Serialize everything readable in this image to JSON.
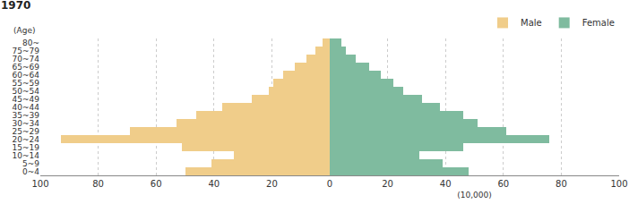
{
  "chart_data": {
    "type": "bar",
    "title": "1970",
    "orientation": "horizontal",
    "categories": [
      "0~4",
      "5~9",
      "10~14",
      "15~19",
      "20~24",
      "25~29",
      "30~34",
      "35~39",
      "40~44",
      "45~49",
      "50~54",
      "55~59",
      "60~64",
      "65~69",
      "70~74",
      "75~79",
      "80~"
    ],
    "series": [
      {
        "name": "Male",
        "color": "#f0cd8a",
        "values": [
          50,
          41,
          33,
          51,
          93,
          69,
          53,
          46,
          37,
          27,
          21,
          19.5,
          16,
          12,
          8,
          5,
          2.5
        ]
      },
      {
        "name": "Female",
        "color": "#7fbb9f",
        "values": [
          48,
          39,
          31,
          46,
          76,
          61,
          51,
          46,
          38,
          32,
          25.5,
          22,
          17.5,
          13.5,
          9,
          5.5,
          4
        ]
      }
    ],
    "xlabel": "(10,000)",
    "ylabel": "(Age)",
    "xlim": [
      0,
      100
    ],
    "xticks": [
      0,
      20,
      40,
      60,
      80,
      100
    ],
    "grid": true,
    "legend": "upper right"
  }
}
